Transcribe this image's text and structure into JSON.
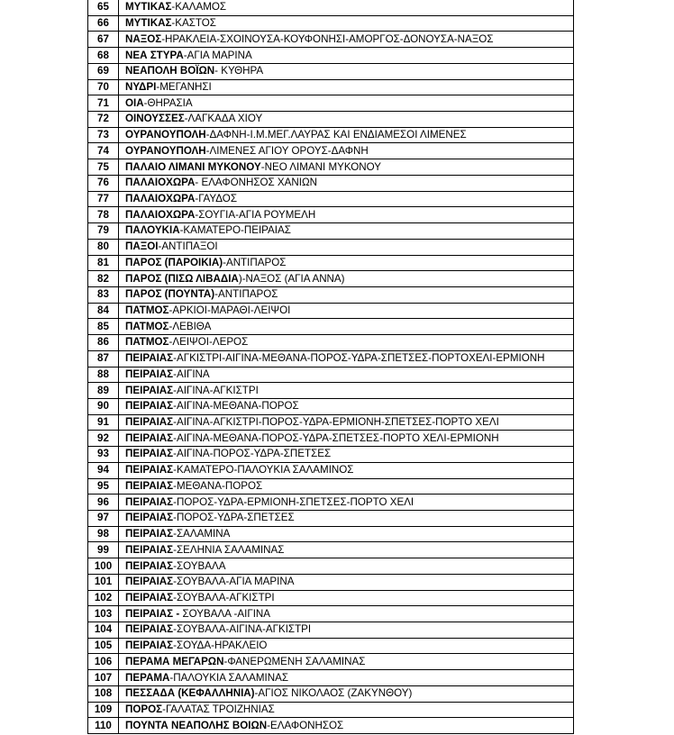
{
  "rows": [
    {
      "num": "65",
      "bold": "ΜΥΤΙΚΑΣ",
      "rest": "-ΚΑΛΑΜΟΣ"
    },
    {
      "num": "66",
      "bold": "ΜΥΤΙΚΑΣ",
      "rest": "-ΚΑΣΤΟΣ"
    },
    {
      "num": "67",
      "bold": "ΝΑΞΟΣ",
      "rest": "-ΗΡΑΚΛΕΙΑ-ΣΧΟΙΝΟΥΣΑ-ΚΟΥΦΟΝΗΣΙ-ΑΜΟΡΓΟΣ-ΔΟΝΟΥΣΑ-ΝΑΞΟΣ"
    },
    {
      "num": "68",
      "bold": "ΝΕΑ ΣΤΥΡΑ",
      "rest": "-ΑΓΙΑ ΜΑΡΙΝΑ"
    },
    {
      "num": "69",
      "bold": "ΝΕΑΠΟΛΗ ΒΟΪΩΝ",
      "rest": "- ΚΥΘΗΡΑ"
    },
    {
      "num": "70",
      "bold": "ΝΥΔΡΙ",
      "rest": "-ΜΕΓΑΝΗΣΙ"
    },
    {
      "num": "71",
      "bold": "ΟΙΑ",
      "rest": "-ΘΗΡΑΣΙΑ"
    },
    {
      "num": "72",
      "bold": "ΟΙΝΟΥΣΣΕΣ",
      "rest": "-ΛΑΓΚΑΔΑ ΧΙΟΥ"
    },
    {
      "num": "73",
      "bold": "ΟΥΡΑΝΟΥΠΟΛΗ",
      "rest": "-ΔΑΦΝΗ-Ι.Μ.ΜΕΓ.ΛΑΥΡΑΣ ΚΑΙ ΕΝΔΙΑΜΕΣΟΙ ΛΙΜΕΝΕΣ"
    },
    {
      "num": "74",
      "bold": "ΟΥΡΑΝΟΥΠΟΛΗ",
      "rest": "-ΛΙΜΕΝΕΣ ΑΓΙΟΥ ΟΡΟΥΣ-ΔΑΦΝΗ"
    },
    {
      "num": "75",
      "bold": "ΠΑΛΑΙΟ ΛΙΜΑΝΙ ΜΥΚΟΝΟΥ",
      "rest": "-ΝΕΟ ΛΙΜΑΝΙ ΜΥΚΟΝΟΥ"
    },
    {
      "num": "76",
      "bold": "ΠΑΛΑΙΟΧΩΡΑ",
      "rest": "- ΕΛΑΦΟΝΗΣΟΣ ΧΑΝΙΩΝ"
    },
    {
      "num": "77",
      "bold": "ΠΑΛΑΙΟΧΩΡΑ",
      "rest": "-ΓΑΥΔΟΣ"
    },
    {
      "num": "78",
      "bold": "ΠΑΛΑΙΟΧΩΡΑ",
      "rest": "-ΣΟΥΓΙΑ-ΑΓΙΑ ΡΟΥΜΕΛΗ"
    },
    {
      "num": "79",
      "bold": "ΠΑΛΟΥΚΙΑ",
      "rest": "-ΚΑΜΑΤΕΡΟ-ΠΕΙΡΑΙΑΣ"
    },
    {
      "num": "80",
      "bold": "ΠΑΞΟΙ",
      "rest": "-ΑΝΤΙΠΑΞΟΙ"
    },
    {
      "num": "81",
      "bold": "ΠΑΡΟΣ (ΠΑΡΟΙΚΙΑ)",
      "rest": "-ΑΝΤΙΠΑΡΟΣ"
    },
    {
      "num": "82",
      "bold": "ΠΑΡΟΣ (ΠΙΣΩ ΛΙΒΑΔΙΑ",
      "rest": ")-ΝΑΞΟΣ (ΑΓΙΑ ΑΝΝΑ)"
    },
    {
      "num": "83",
      "bold": "ΠΑΡΟΣ (ΠΟΥΝΤΑ)",
      "rest": "-ΑΝΤΙΠΑΡΟΣ"
    },
    {
      "num": "84",
      "bold": "ΠΑΤΜΟΣ",
      "rest": "-ΑΡΚΙΟΙ-ΜΑΡΑΘΙ-ΛΕΙΨΟΙ"
    },
    {
      "num": "85",
      "bold": "ΠΑΤΜΟΣ",
      "rest": "-ΛΕΒΙΘΑ"
    },
    {
      "num": "86",
      "bold": "ΠΑΤΜΟΣ",
      "rest": "-ΛΕΙΨΟΙ-ΛΕΡΟΣ"
    },
    {
      "num": "87",
      "bold": "ΠΕΙΡΑΙΑΣ",
      "rest": "-ΑΓΚΙΣΤΡΙ-ΑΙΓΙΝΑ-ΜΕΘΑΝΑ-ΠΟΡΟΣ-ΥΔΡΑ-ΣΠΕΤΣΕΣ-ΠΟΡΤΟΧΕΛΙ-ΕΡΜΙΟΝΗ"
    },
    {
      "num": "88",
      "bold": "ΠΕΙΡΑΙΑΣ",
      "rest": "-ΑΙΓΙΝΑ"
    },
    {
      "num": "89",
      "bold": "ΠΕΙΡΑΙΑΣ",
      "rest": "-ΑΙΓΙΝΑ-ΑΓΚΙΣΤΡΙ"
    },
    {
      "num": "90",
      "bold": "ΠΕΙΡΑΙΑΣ",
      "rest": "-ΑΙΓΙΝΑ-ΜΕΘΑΝΑ-ΠΟΡΟΣ"
    },
    {
      "num": "91",
      "bold": "ΠΕΙΡΑΙΑΣ",
      "rest": "-ΑΙΓΙΝΑ-ΑΓΚΙΣΤΡΙ-ΠΟΡΟΣ-ΥΔΡΑ-ΕΡΜΙΟΝΗ-ΣΠΕΤΣΕΣ-ΠΟΡΤΟ ΧΕΛΙ"
    },
    {
      "num": "92",
      "bold": "ΠΕΙΡΑΙΑΣ",
      "rest": "-ΑΙΓΙΝΑ-ΜΕΘΑΝΑ-ΠΟΡΟΣ-ΥΔΡΑ-ΣΠΕΤΣΕΣ-ΠΟΡΤΟ ΧΕΛΙ-ΕΡΜΙΟΝΗ"
    },
    {
      "num": "93",
      "bold": "ΠΕΙΡΑΙΑΣ",
      "rest": "-ΑΙΓΙΝΑ-ΠΟΡΟΣ-ΥΔΡΑ-ΣΠΕΤΣΕΣ"
    },
    {
      "num": "94",
      "bold": "ΠΕΙΡΑΙΑΣ",
      "rest": "-ΚΑΜΑΤΕΡΟ-ΠΑΛΟΥΚΙΑ ΣΑΛΑΜΙΝΟΣ"
    },
    {
      "num": "95",
      "bold": "ΠΕΙΡΑΙΑΣ",
      "rest": "-ΜΕΘΑΝΑ-ΠΟΡΟΣ"
    },
    {
      "num": "96",
      "bold": "ΠΕΙΡΑΙΑΣ",
      "rest": "-ΠΟΡΟΣ-ΥΔΡΑ-ΕΡΜΙΟΝΗ-ΣΠΕΤΣΕΣ-ΠΟΡΤΟ ΧΕΛΙ"
    },
    {
      "num": "97",
      "bold": "ΠΕΙΡΑΙΑΣ",
      "rest": "-ΠΟΡΟΣ-ΥΔΡΑ-ΣΠΕΤΣΕΣ"
    },
    {
      "num": "98",
      "bold": "ΠΕΙΡΑΙΑΣ",
      "rest": "-ΣΑΛΑΜΙΝΑ"
    },
    {
      "num": "99",
      "bold": "ΠΕΙΡΑΙΑΣ",
      "rest": "-ΣΕΛΗΝΙΑ ΣΑΛΑΜΙΝΑΣ"
    },
    {
      "num": "100",
      "bold": "ΠΕΙΡΑΙΑΣ",
      "rest": "-ΣΟΥΒΑΛΑ"
    },
    {
      "num": "101",
      "bold": "ΠΕΙΡΑΙΑΣ",
      "rest": "-ΣΟΥΒΑΛΑ-ΑΓΙΑ ΜΑΡΙΝΑ"
    },
    {
      "num": "102",
      "bold": "ΠΕΙΡΑΙΑΣ",
      "rest": "-ΣΟΥΒΑΛΑ-ΑΓΚΙΣΤΡΙ"
    },
    {
      "num": "103",
      "bold": "ΠΕΙΡΑΙΑΣ -",
      "rest": " ΣΟΥΒΑΛΑ -ΑΙΓΙΝΑ"
    },
    {
      "num": "104",
      "bold": "ΠΕΙΡΑΙΑΣ",
      "rest": "-ΣΟΥΒΑΛΑ-ΑΙΓΙΝΑ-ΑΓΚΙΣΤΡΙ"
    },
    {
      "num": "105",
      "bold": "ΠΕΙΡΑΙΑΣ",
      "rest": "-ΣΟΥΔΑ-ΗΡΑΚΛΕΙΟ"
    },
    {
      "num": "106",
      "bold": "ΠΕΡΑΜΑ ΜΕΓΑΡΩΝ",
      "rest": "-ΦΑΝΕΡΩΜΕΝΗ ΣΑΛΑΜΙΝΑΣ"
    },
    {
      "num": "107",
      "bold": "ΠΕΡΑΜΑ",
      "rest": "-ΠΑΛΟΥΚΙΑ ΣΑΛΑΜΙΝΑΣ"
    },
    {
      "num": "108",
      "bold": "ΠΕΣΣΑΔΑ (ΚΕΦΑΛΛΗΝΙΑ)",
      "rest": "-ΑΓΙΟΣ ΝΙΚΟΛΑΟΣ (ΖΑΚΥΝΘΟΥ)"
    },
    {
      "num": "109",
      "bold": "ΠΟΡΟΣ",
      "rest": "-ΓΑΛΑΤΑΣ ΤΡΟΙΖΗΝΙΑΣ"
    },
    {
      "num": "110",
      "bold": "ΠΟΥΝΤΑ ΝΕΑΠΟΛΗΣ ΒΟΙΩΝ",
      "rest": "-ΕΛΑΦΟΝΗΣΟΣ"
    }
  ]
}
